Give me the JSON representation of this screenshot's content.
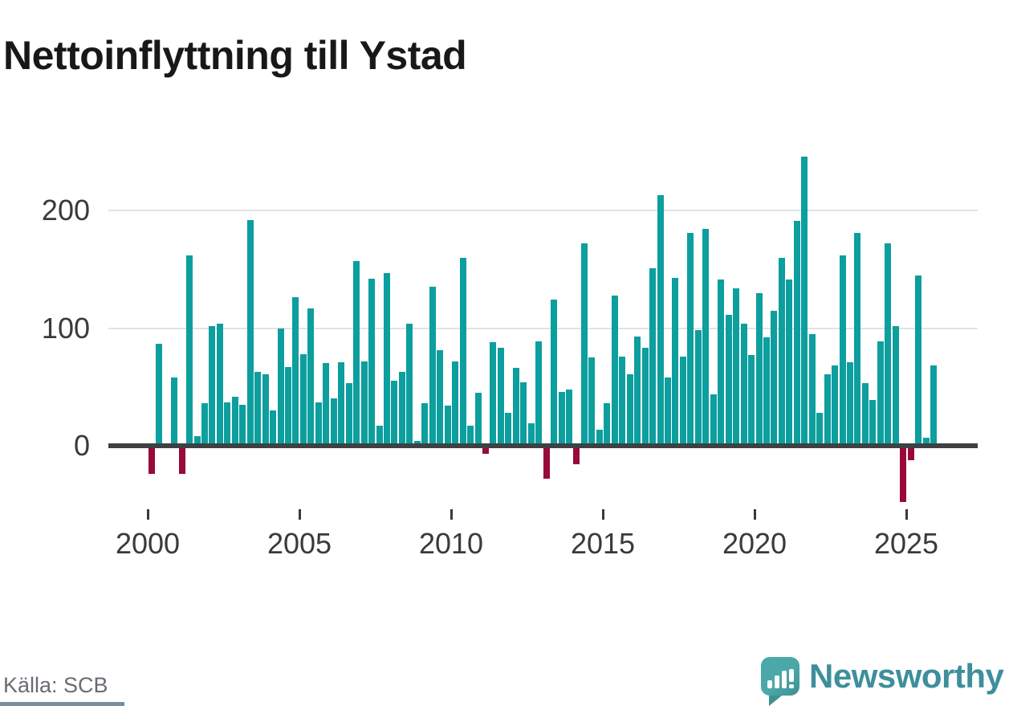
{
  "title": "Nettoinflyttning till Ystad",
  "source": {
    "label": "Källa: SCB"
  },
  "branding": {
    "name": "Newsworthy",
    "logo_icon": "speech-bubble-with-bar-chart-and-exclamation",
    "word_color": "#3d8f9c",
    "icon_color": "#4aa8a8"
  },
  "chart_data": {
    "type": "bar",
    "title": "Nettoinflyttning till Ystad",
    "frequency": "quarterly",
    "start_period": "2000Q1",
    "end_period": "2025Q4",
    "xlabel": "",
    "ylabel": "",
    "x_tick_labels": [
      "2000",
      "2005",
      "2010",
      "2015",
      "2020",
      "2025"
    ],
    "y_tick_labels": [
      "0",
      "100",
      "200"
    ],
    "y_gridlines": [
      100,
      200
    ],
    "ylim": [
      -55,
      250
    ],
    "grid": true,
    "legend": false,
    "positive_color": "#0d9e9e",
    "negative_color": "#970a3a",
    "axis_color": "#3d4144",
    "values": [
      -24,
      87,
      0,
      58,
      -24,
      162,
      8,
      36,
      102,
      104,
      37,
      42,
      35,
      192,
      63,
      61,
      30,
      100,
      67,
      126,
      78,
      117,
      37,
      70,
      40,
      71,
      53,
      157,
      72,
      142,
      17,
      147,
      55,
      63,
      104,
      4,
      36,
      135,
      81,
      34,
      72,
      160,
      17,
      45,
      -7,
      88,
      83,
      28,
      66,
      54,
      19,
      89,
      -28,
      124,
      46,
      48,
      -16,
      172,
      75,
      14,
      36,
      128,
      76,
      61,
      93,
      83,
      151,
      213,
      58,
      143,
      76,
      181,
      98,
      184,
      44,
      141,
      111,
      134,
      104,
      77,
      130,
      92,
      115,
      160,
      141,
      191,
      246,
      95,
      28,
      61,
      68,
      162,
      71,
      181,
      53,
      39,
      89,
      172,
      102,
      -48,
      -12,
      145,
      7,
      68
    ]
  }
}
